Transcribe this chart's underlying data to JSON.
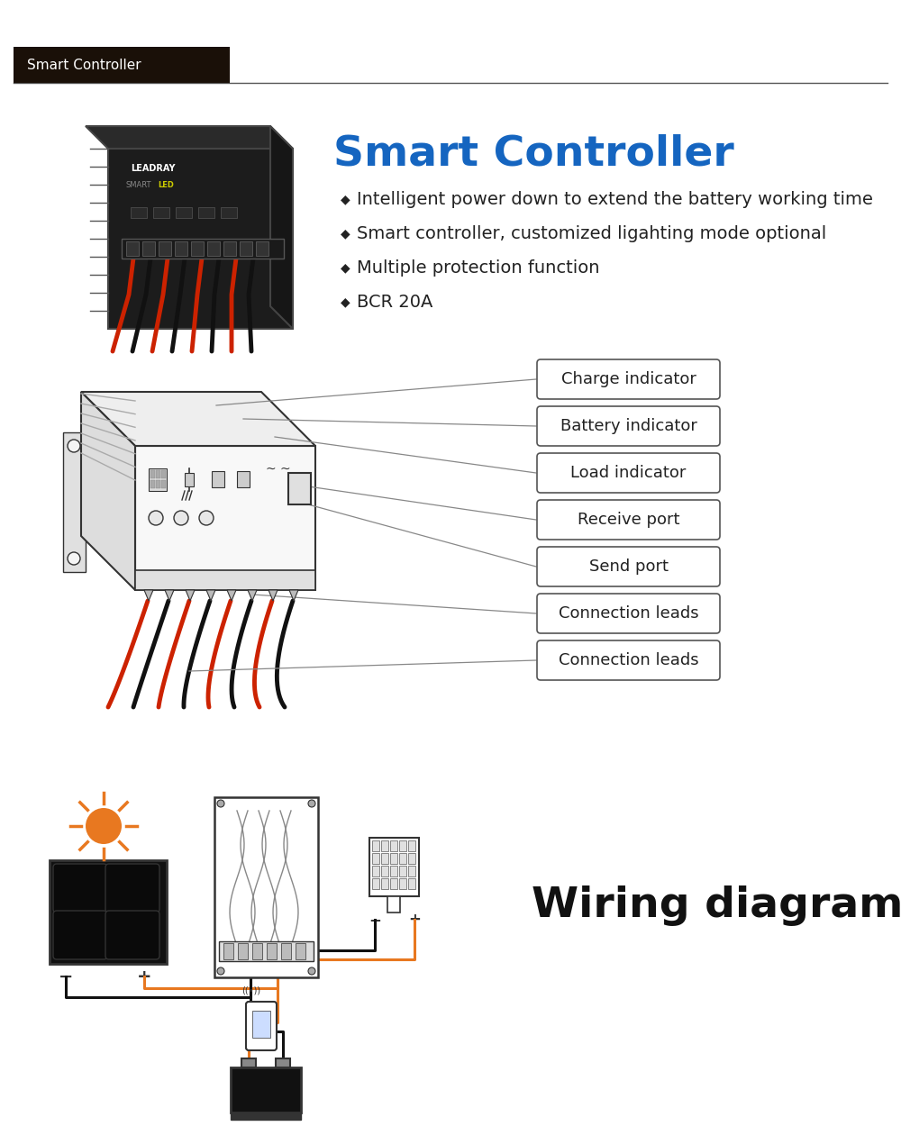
{
  "title": "Smart Controller",
  "header_text": "Smart Controller",
  "header_bg": "#1a1008",
  "header_text_color": "#ffffff",
  "page_bg": "#ffffff",
  "title_color": "#1565c0",
  "title_fontsize": 34,
  "bullet_points": [
    "Intelligent power down to extend the battery working time",
    "Smart controller, customized ligahting mode optional",
    "Multiple protection function",
    "BCR 20A"
  ],
  "bullet_color": "#222222",
  "bullet_fontsize": 14,
  "bullet_diamond": "◆",
  "labels": [
    "Charge indicator",
    "Battery indicator",
    "Load indicator",
    "Receive port",
    "Send port",
    "Connection leads",
    "Connection leads"
  ],
  "label_box_color": "#ffffff",
  "label_box_edge": "#555555",
  "label_text_color": "#222222",
  "label_fontsize": 13,
  "wiring_title": "Wiring diagram",
  "wiring_title_fontsize": 34,
  "wiring_title_color": "#111111",
  "line_color": "#888888",
  "wire_red": "#cc2200",
  "wire_black": "#111111",
  "wire_orange": "#e87820",
  "sun_color": "#e87820",
  "section_divider_color": "#555555",
  "draw_color": "#333333"
}
